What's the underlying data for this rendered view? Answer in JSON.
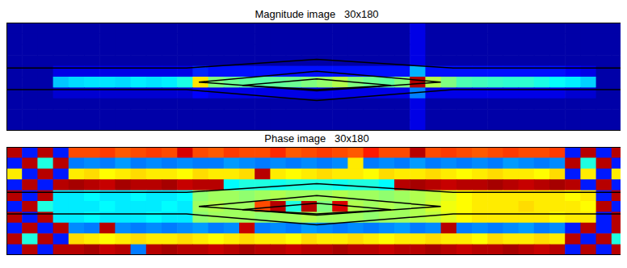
{
  "chart_data": [
    {
      "type": "heatmap",
      "title": "Magnitude image   30x180",
      "tick_labels": false,
      "color_range": [
        0,
        1
      ],
      "cells": [
        [
          0.04,
          0.04,
          0.04,
          0.04,
          0.04,
          0.04,
          0.04,
          0.04,
          0.04,
          0.04,
          0.04,
          0.04,
          0.04,
          0.04,
          0.04,
          0.04,
          0.04,
          0.04,
          0.04,
          0.04,
          0.04,
          0.04,
          0.04,
          0.04,
          0.04,
          0.04,
          0.1,
          0.04,
          0.04,
          0.04,
          0.04,
          0.04,
          0.04,
          0.04,
          0.04,
          0.04,
          0.04,
          0.04,
          0.04,
          0.04
        ],
        [
          0.04,
          0.04,
          0.04,
          0.04,
          0.04,
          0.04,
          0.04,
          0.04,
          0.04,
          0.04,
          0.04,
          0.04,
          0.04,
          0.04,
          0.04,
          0.04,
          0.04,
          0.04,
          0.04,
          0.04,
          0.04,
          0.04,
          0.04,
          0.04,
          0.04,
          0.04,
          0.1,
          0.04,
          0.04,
          0.04,
          0.04,
          0.04,
          0.04,
          0.04,
          0.04,
          0.04,
          0.04,
          0.04,
          0.04,
          0.04
        ],
        [
          0.04,
          0.04,
          0.04,
          0.04,
          0.04,
          0.04,
          0.04,
          0.04,
          0.04,
          0.04,
          0.04,
          0.04,
          0.04,
          0.04,
          0.04,
          0.04,
          0.04,
          0.04,
          0.04,
          0.04,
          0.04,
          0.04,
          0.04,
          0.04,
          0.04,
          0.04,
          0.1,
          0.04,
          0.04,
          0.04,
          0.04,
          0.04,
          0.04,
          0.04,
          0.04,
          0.04,
          0.04,
          0.04,
          0.04,
          0.04
        ],
        [
          0.04,
          0.04,
          0.04,
          0.04,
          0.04,
          0.04,
          0.04,
          0.04,
          0.04,
          0.04,
          0.04,
          0.04,
          0.04,
          0.04,
          0.04,
          0.04,
          0.04,
          0.04,
          0.04,
          0.04,
          0.04,
          0.04,
          0.04,
          0.04,
          0.04,
          0.04,
          0.1,
          0.04,
          0.04,
          0.04,
          0.04,
          0.04,
          0.04,
          0.04,
          0.04,
          0.04,
          0.04,
          0.04,
          0.04,
          0.04
        ],
        [
          0.04,
          0.04,
          0.04,
          0.1,
          0.1,
          0.1,
          0.1,
          0.1,
          0.1,
          0.1,
          0.1,
          0.1,
          0.16,
          0.14,
          0.14,
          0.14,
          0.14,
          0.14,
          0.14,
          0.14,
          0.14,
          0.14,
          0.14,
          0.14,
          0.14,
          0.14,
          0.3,
          0.14,
          0.14,
          0.14,
          0.14,
          0.14,
          0.14,
          0.14,
          0.14,
          0.14,
          0.12,
          0.1,
          0.04,
          0.04
        ],
        [
          0.04,
          0.04,
          0.04,
          0.32,
          0.34,
          0.35,
          0.35,
          0.34,
          0.36,
          0.35,
          0.36,
          0.4,
          0.65,
          0.5,
          0.48,
          0.47,
          0.46,
          0.47,
          0.48,
          0.5,
          0.52,
          0.55,
          0.5,
          0.48,
          0.47,
          0.5,
          0.95,
          0.55,
          0.5,
          0.45,
          0.44,
          0.43,
          0.42,
          0.42,
          0.4,
          0.38,
          0.36,
          0.33,
          0.04,
          0.04
        ],
        [
          0.04,
          0.04,
          0.04,
          0.08,
          0.08,
          0.08,
          0.08,
          0.08,
          0.08,
          0.08,
          0.08,
          0.08,
          0.12,
          0.1,
          0.1,
          0.1,
          0.1,
          0.1,
          0.1,
          0.1,
          0.1,
          0.1,
          0.1,
          0.1,
          0.1,
          0.1,
          0.25,
          0.1,
          0.1,
          0.1,
          0.1,
          0.1,
          0.1,
          0.1,
          0.1,
          0.1,
          0.08,
          0.08,
          0.04,
          0.04
        ],
        [
          0.04,
          0.04,
          0.04,
          0.04,
          0.04,
          0.04,
          0.04,
          0.04,
          0.04,
          0.04,
          0.04,
          0.04,
          0.04,
          0.04,
          0.04,
          0.04,
          0.04,
          0.04,
          0.04,
          0.04,
          0.04,
          0.04,
          0.04,
          0.04,
          0.04,
          0.04,
          0.1,
          0.04,
          0.04,
          0.04,
          0.04,
          0.04,
          0.04,
          0.04,
          0.04,
          0.04,
          0.04,
          0.04,
          0.04,
          0.04
        ],
        [
          0.04,
          0.04,
          0.04,
          0.04,
          0.04,
          0.04,
          0.04,
          0.04,
          0.04,
          0.04,
          0.04,
          0.04,
          0.04,
          0.04,
          0.04,
          0.04,
          0.04,
          0.04,
          0.04,
          0.04,
          0.04,
          0.04,
          0.04,
          0.04,
          0.04,
          0.04,
          0.1,
          0.04,
          0.04,
          0.04,
          0.04,
          0.04,
          0.04,
          0.04,
          0.04,
          0.04,
          0.04,
          0.04,
          0.04,
          0.04
        ],
        [
          0.04,
          0.04,
          0.04,
          0.04,
          0.04,
          0.04,
          0.04,
          0.04,
          0.04,
          0.04,
          0.04,
          0.04,
          0.04,
          0.04,
          0.04,
          0.04,
          0.04,
          0.04,
          0.04,
          0.04,
          0.04,
          0.04,
          0.04,
          0.04,
          0.04,
          0.04,
          0.1,
          0.04,
          0.04,
          0.04,
          0.04,
          0.04,
          0.04,
          0.04,
          0.04,
          0.04,
          0.04,
          0.04,
          0.04,
          0.04
        ]
      ]
    },
    {
      "type": "heatmap",
      "title": "Phase image   30x180",
      "tick_labels": false,
      "color_range": [
        -3.14,
        3.14
      ],
      "cells": [
        [
          2.8,
          -2.2,
          2.8,
          -2.2,
          1.9,
          1.9,
          2.0,
          1.8,
          1.9,
          2.0,
          1.9,
          2.6,
          1.9,
          1.8,
          2.0,
          1.9,
          1.9,
          2.1,
          1.8,
          1.9,
          2.0,
          1.9,
          1.8,
          2.2,
          1.9,
          1.9,
          2.8,
          1.9,
          2.0,
          1.9,
          1.8,
          1.9,
          2.0,
          1.9,
          1.9,
          2.0,
          -2.2,
          2.8,
          -2.2,
          2.8
        ],
        [
          -2.2,
          2.8,
          -0.6,
          2.8,
          -1.6,
          -1.5,
          -1.6,
          -1.4,
          -1.6,
          -1.5,
          -1.6,
          -1.5,
          -1.6,
          -1.6,
          -1.4,
          -1.5,
          -1.6,
          -1.5,
          -1.6,
          -1.5,
          -1.6,
          -1.5,
          0.9,
          -1.6,
          -1.5,
          -1.6,
          -1.4,
          -1.6,
          -1.5,
          -1.6,
          -1.5,
          -1.6,
          -1.4,
          -1.5,
          -1.6,
          -1.5,
          2.8,
          -0.6,
          2.8,
          -2.2
        ],
        [
          0.9,
          -2.2,
          2.8,
          -2.2,
          0.9,
          1.0,
          0.8,
          0.9,
          1.0,
          0.9,
          0.9,
          0.8,
          1.0,
          0.9,
          0.9,
          1.0,
          2.8,
          0.9,
          0.8,
          0.9,
          1.0,
          0.9,
          0.9,
          0.8,
          1.0,
          0.9,
          0.9,
          1.0,
          0.9,
          0.8,
          0.9,
          1.0,
          0.9,
          0.9,
          0.8,
          1.0,
          -2.2,
          0.9,
          -2.2,
          0.9
        ],
        [
          -2.2,
          2.8,
          -2.2,
          2.8,
          2.9,
          2.8,
          2.7,
          2.9,
          2.8,
          2.8,
          2.9,
          2.7,
          2.8,
          2.8,
          -0.8,
          -0.6,
          -0.6,
          -0.7,
          -0.6,
          -0.6,
          -0.6,
          -0.7,
          -0.6,
          -0.6,
          -0.8,
          2.8,
          2.9,
          2.8,
          2.7,
          2.8,
          2.8,
          2.9,
          2.8,
          2.7,
          2.8,
          2.9,
          2.8,
          -2.2,
          2.8,
          -2.2
        ],
        [
          2.8,
          -2.2,
          2.8,
          -0.9,
          -0.9,
          -0.8,
          -0.9,
          -0.9,
          -0.8,
          -0.9,
          -0.9,
          -0.8,
          0.1,
          0.2,
          0.2,
          0.1,
          0.2,
          0.3,
          0.2,
          0.2,
          0.2,
          0.3,
          0.2,
          0.2,
          0.1,
          0.2,
          0.3,
          0.4,
          0.6,
          0.8,
          0.9,
          0.9,
          0.9,
          0.9,
          0.9,
          0.9,
          0.8,
          0.9,
          -2.2,
          2.8
        ],
        [
          -2.2,
          2.8,
          -0.6,
          -0.9,
          -0.9,
          -0.9,
          -0.8,
          -0.9,
          -0.9,
          -0.9,
          -0.8,
          -0.9,
          0.2,
          0.3,
          0.2,
          0.2,
          1.9,
          2.8,
          -0.6,
          2.8,
          0.0,
          2.6,
          0.3,
          0.2,
          0.3,
          0.2,
          0.3,
          0.5,
          0.7,
          0.8,
          0.9,
          0.9,
          0.9,
          1.0,
          0.9,
          0.9,
          0.9,
          0.8,
          2.8,
          -2.2
        ],
        [
          2.8,
          -2.2,
          2.8,
          -0.9,
          -0.9,
          -0.8,
          -0.9,
          -0.9,
          -0.9,
          -0.8,
          -0.9,
          -0.9,
          0.1,
          0.2,
          0.2,
          0.2,
          0.1,
          0.2,
          0.2,
          0.3,
          0.2,
          0.2,
          0.2,
          0.1,
          0.2,
          0.2,
          0.3,
          0.4,
          0.6,
          0.8,
          0.9,
          0.9,
          0.9,
          0.9,
          0.9,
          0.8,
          0.9,
          0.9,
          -2.2,
          2.8
        ],
        [
          -2.2,
          2.8,
          -2.2,
          2.8,
          -1.5,
          -1.6,
          2.8,
          -1.5,
          -1.6,
          -1.5,
          -1.6,
          -1.5,
          -1.4,
          -1.6,
          -1.5,
          2.7,
          -1.6,
          -1.5,
          -1.6,
          -1.4,
          -1.5,
          -1.6,
          -1.5,
          -1.6,
          -1.5,
          -1.4,
          -1.6,
          -1.5,
          2.8,
          -1.6,
          -1.5,
          -1.6,
          -1.5,
          -1.4,
          -1.6,
          -1.5,
          -2.2,
          2.8,
          -2.2,
          2.8
        ],
        [
          2.8,
          -0.6,
          2.8,
          -2.2,
          1.0,
          0.9,
          0.8,
          0.9,
          1.0,
          0.9,
          0.9,
          1.0,
          0.9,
          0.8,
          0.9,
          1.0,
          0.9,
          0.9,
          0.8,
          1.0,
          0.9,
          0.9,
          1.0,
          0.9,
          0.8,
          0.9,
          0.9,
          1.0,
          0.9,
          0.9,
          0.8,
          1.0,
          0.9,
          0.9,
          1.0,
          0.9,
          2.8,
          -2.2,
          2.8,
          -0.6
        ],
        [
          -2.2,
          2.8,
          -2.2,
          2.8,
          2.8,
          2.9,
          2.7,
          2.8,
          -1.6,
          2.8,
          2.9,
          2.8,
          2.8,
          2.7,
          2.8,
          2.9,
          2.8,
          2.8,
          2.7,
          2.8,
          2.8,
          2.9,
          2.8,
          2.8,
          2.7,
          2.8,
          2.8,
          2.9,
          2.8,
          2.7,
          2.8,
          2.8,
          2.9,
          2.8,
          2.7,
          2.8,
          -2.2,
          2.8,
          -2.2,
          2.8
        ]
      ]
    }
  ]
}
